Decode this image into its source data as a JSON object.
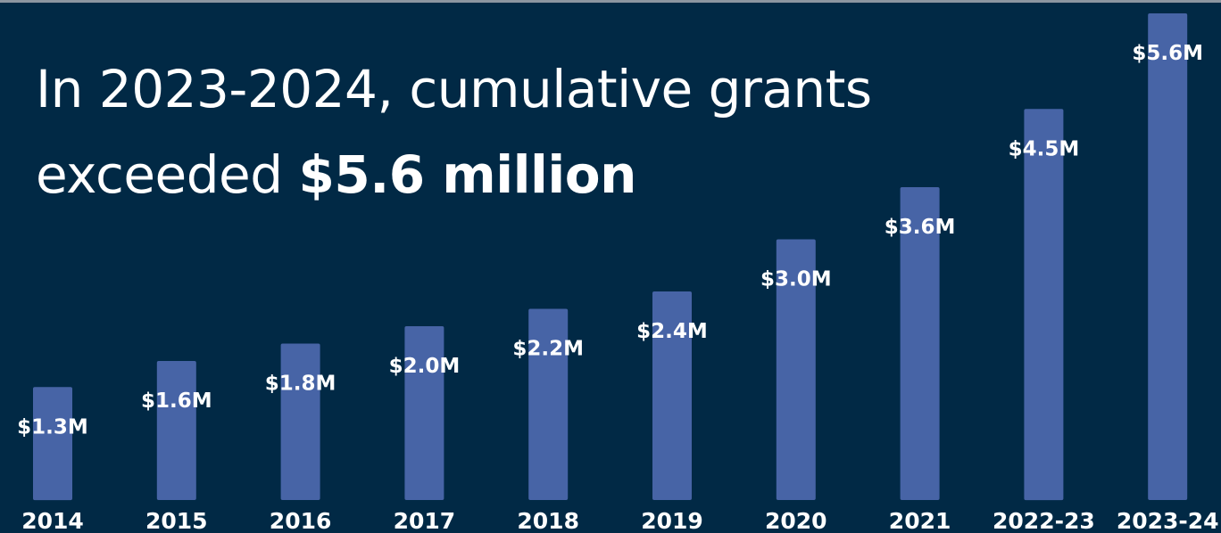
{
  "headline": {
    "line1": "In 2023-2024, cumulative grants",
    "line2_prefix": "exceeded ",
    "line2_bold": "$5.6 million"
  },
  "colors": {
    "background": "#012945",
    "bar": "#4764a6",
    "text": "#ffffff"
  },
  "chart_data": {
    "type": "bar",
    "title": "In 2023-2024, cumulative grants exceeded $5.6 million",
    "xlabel": "",
    "ylabel": "",
    "grid": false,
    "categories": [
      "2014",
      "2015",
      "2016",
      "2017",
      "2018",
      "2019",
      "2020",
      "2021",
      "2022-23",
      "2023-24"
    ],
    "values": [
      1.3,
      1.6,
      1.8,
      2.0,
      2.2,
      2.4,
      3.0,
      3.6,
      4.5,
      5.6
    ],
    "data_labels": [
      "$1.3M",
      "$1.6M",
      "$1.8M",
      "$2.0M",
      "$2.2M",
      "$2.4M",
      "$3.0M",
      "$3.6M",
      "$4.5M",
      "$5.6M"
    ],
    "ylim": [
      0,
      5.7
    ]
  }
}
